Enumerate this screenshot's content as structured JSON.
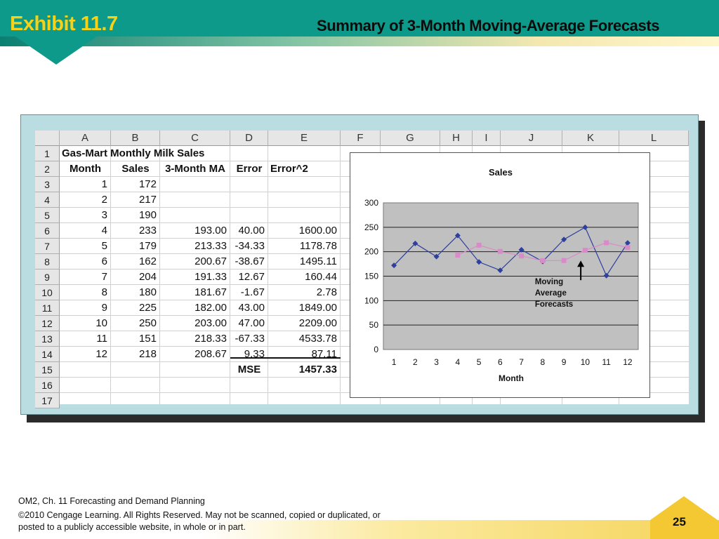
{
  "slide": {
    "exhibit": "Exhibit 11.7",
    "title": "Summary of 3-Month Moving-Average Forecasts",
    "colors": {
      "header": "#0e9a8a",
      "exhibit_text": "#f5d218",
      "panel": "#b9dde1",
      "footer_accent": "#f3c832"
    }
  },
  "spreadsheet": {
    "columns": [
      "A",
      "B",
      "C",
      "D",
      "E",
      "F",
      "G",
      "H",
      "I",
      "J",
      "K",
      "L"
    ],
    "rows": [
      "1",
      "2",
      "3",
      "4",
      "5",
      "6",
      "7",
      "8",
      "9",
      "10",
      "11",
      "12",
      "13",
      "14",
      "15",
      "16",
      "17"
    ],
    "title": "Gas-Mart Monthly Milk Sales",
    "headers": {
      "month": "Month",
      "sales": "Sales",
      "ma": "3-Month MA",
      "error": "Error",
      "error2": "Error^2"
    },
    "data": [
      {
        "month": "1",
        "sales": "172",
        "ma": "",
        "error": "",
        "error2": ""
      },
      {
        "month": "2",
        "sales": "217",
        "ma": "",
        "error": "",
        "error2": ""
      },
      {
        "month": "3",
        "sales": "190",
        "ma": "",
        "error": "",
        "error2": ""
      },
      {
        "month": "4",
        "sales": "233",
        "ma": "193.00",
        "error": "40.00",
        "error2": "1600.00"
      },
      {
        "month": "5",
        "sales": "179",
        "ma": "213.33",
        "error": "-34.33",
        "error2": "1178.78"
      },
      {
        "month": "6",
        "sales": "162",
        "ma": "200.67",
        "error": "-38.67",
        "error2": "1495.11"
      },
      {
        "month": "7",
        "sales": "204",
        "ma": "191.33",
        "error": "12.67",
        "error2": "160.44"
      },
      {
        "month": "8",
        "sales": "180",
        "ma": "181.67",
        "error": "-1.67",
        "error2": "2.78"
      },
      {
        "month": "9",
        "sales": "225",
        "ma": "182.00",
        "error": "43.00",
        "error2": "1849.00"
      },
      {
        "month": "10",
        "sales": "250",
        "ma": "203.00",
        "error": "47.00",
        "error2": "2209.00"
      },
      {
        "month": "11",
        "sales": "151",
        "ma": "218.33",
        "error": "-67.33",
        "error2": "4533.78"
      },
      {
        "month": "12",
        "sales": "218",
        "ma": "208.67",
        "error": "9.33",
        "error2": "87.11"
      }
    ],
    "mse_label": "MSE",
    "mse_value": "1457.33"
  },
  "chart_data": {
    "type": "line",
    "title": "Sales",
    "xlabel": "Month",
    "ylabel": "",
    "categories": [
      "1",
      "2",
      "3",
      "4",
      "5",
      "6",
      "7",
      "8",
      "9",
      "10",
      "11",
      "12"
    ],
    "series": [
      {
        "values": [
          172,
          217,
          190,
          233,
          179,
          162,
          204,
          180,
          225,
          250,
          151,
          218
        ],
        "color": "#2e3f9e",
        "marker": "diamond"
      },
      {
        "values": [
          null,
          null,
          null,
          193.0,
          213.33,
          200.67,
          191.33,
          181.67,
          182.0,
          203.0,
          218.33,
          208.67
        ],
        "color": "#d98bc9",
        "marker": "square"
      }
    ],
    "ylim": [
      0,
      300
    ],
    "yticks": [
      "0",
      "50",
      "100",
      "150",
      "200",
      "250",
      "300"
    ],
    "grid": true,
    "plot_background": "#c0c0c0",
    "annotation": [
      "Moving",
      "Average",
      "Forecasts"
    ]
  },
  "footer": {
    "line1": "OM2, Ch. 11 Forecasting and Demand Planning",
    "line2": "©2010 Cengage Learning. All Rights Reserved.  May not be scanned, copied or duplicated, or",
    "line3": "posted to a publicly accessible website, in whole or in part.",
    "page": "25"
  }
}
